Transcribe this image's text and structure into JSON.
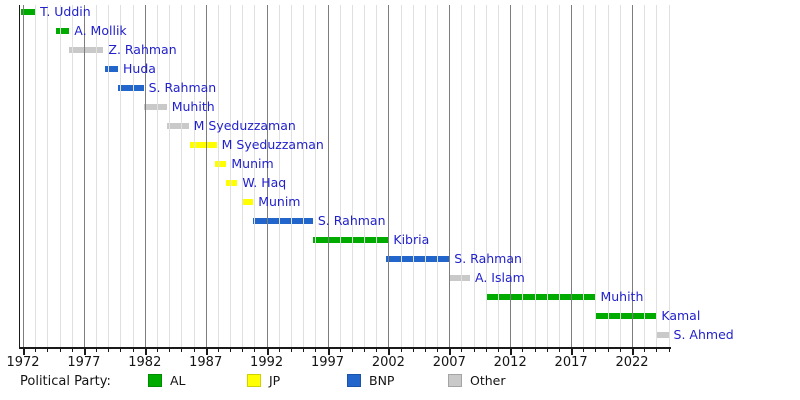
{
  "chart_data": {
    "type": "bar",
    "variant": "gantt-timeline",
    "title": "",
    "xlabel": "",
    "ylabel": "",
    "x_domain": [
      1971.7,
      2025.2
    ],
    "grid": "on",
    "x_major_ticks": [
      1972,
      1977,
      1982,
      1987,
      1992,
      1997,
      2002,
      2007,
      2012,
      2017,
      2022
    ],
    "x_major_tick_labels": [
      "1972",
      "1977",
      "1982",
      "1987",
      "1992",
      "1997",
      "2002",
      "2007",
      "2012",
      "2017",
      "2022"
    ],
    "x_minor_tick_step": 1,
    "x_minor_tick_range": [
      1972,
      2025
    ],
    "party_colors": {
      "AL": "#00ab00",
      "JP": "#ffff00",
      "BNP": "#2266cc",
      "Other": "#c9c9c9"
    },
    "label_color": "#2222cc",
    "bars": [
      {
        "label": "T. Uddin",
        "party": "AL",
        "start": 1971.8,
        "end": 1973.0
      },
      {
        "label": "A. Mollik",
        "party": "AL",
        "start": 1974.7,
        "end": 1975.8
      },
      {
        "label": "Z. Rahman",
        "party": "Other",
        "start": 1975.8,
        "end": 1978.6
      },
      {
        "label": "Huda",
        "party": "BNP",
        "start": 1978.7,
        "end": 1979.8
      },
      {
        "label": "S. Rahman",
        "party": "BNP",
        "start": 1979.8,
        "end": 1981.9
      },
      {
        "label": "Muhith",
        "party": "Other",
        "start": 1981.9,
        "end": 1983.8
      },
      {
        "label": "M Syeduzzaman",
        "party": "Other",
        "start": 1983.8,
        "end": 1985.6
      },
      {
        "label": "M Syeduzzaman",
        "party": "JP",
        "start": 1985.7,
        "end": 1987.9
      },
      {
        "label": "Munim",
        "party": "JP",
        "start": 1987.8,
        "end": 1988.7
      },
      {
        "label": "W. Haq",
        "party": "JP",
        "start": 1988.7,
        "end": 1989.6
      },
      {
        "label": "Munim",
        "party": "JP",
        "start": 1990.0,
        "end": 1990.9
      },
      {
        "label": "S. Rahman",
        "party": "BNP",
        "start": 1990.9,
        "end": 1995.8
      },
      {
        "label": "Kibria",
        "party": "AL",
        "start": 1995.8,
        "end": 2002.0
      },
      {
        "label": "S. Rahman",
        "party": "BNP",
        "start": 2001.8,
        "end": 2007.0
      },
      {
        "label": "A. Islam",
        "party": "Other",
        "start": 2007.0,
        "end": 2008.7
      },
      {
        "label": "Muhith",
        "party": "AL",
        "start": 2010.0,
        "end": 2019.0
      },
      {
        "label": "Kamal",
        "party": "AL",
        "start": 2019.0,
        "end": 2024.0
      },
      {
        "label": "S. Ahmed",
        "party": "Other",
        "start": 2024.0,
        "end": 2025.0
      }
    ],
    "legend": {
      "title": "Political Party:",
      "position": "bottom",
      "entries": [
        {
          "label": "AL",
          "color": "#00ab00"
        },
        {
          "label": "JP",
          "color": "#ffff00"
        },
        {
          "label": "BNP",
          "color": "#2266cc"
        },
        {
          "label": "Other",
          "color": "#c9c9c9"
        }
      ]
    }
  }
}
